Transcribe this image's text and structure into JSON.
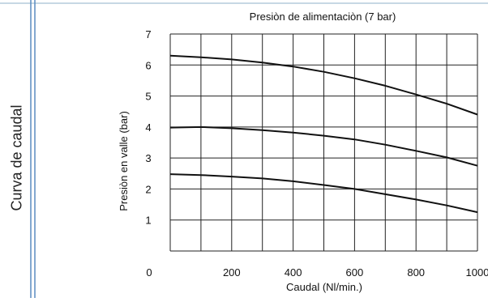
{
  "side_title": "Curva de caudal",
  "chart_data": {
    "type": "line",
    "title": "Presiòn de alimentaciòn (7 bar)",
    "xlabel": "Caudal (Nl/min.)",
    "ylabel": "Presiòn en valle (bar)",
    "xlim": [
      0,
      1000
    ],
    "ylim": [
      0,
      7
    ],
    "x_ticks": [
      0,
      200,
      400,
      600,
      800,
      1000
    ],
    "y_ticks": [
      1,
      2,
      3,
      4,
      5,
      6,
      7
    ],
    "grid": true,
    "series": [
      {
        "x": [
          0,
          100,
          200,
          300,
          400,
          500,
          600,
          700,
          800,
          900,
          1000
        ],
        "values": [
          6.3,
          6.25,
          6.18,
          6.08,
          5.95,
          5.78,
          5.57,
          5.33,
          5.05,
          4.75,
          4.4
        ]
      },
      {
        "x": [
          0,
          100,
          200,
          300,
          400,
          500,
          600,
          700,
          800,
          900,
          1000
        ],
        "values": [
          3.98,
          4.0,
          3.96,
          3.9,
          3.82,
          3.72,
          3.6,
          3.43,
          3.23,
          3.02,
          2.75
        ]
      },
      {
        "x": [
          0,
          100,
          200,
          300,
          400,
          500,
          600,
          700,
          800,
          900,
          1000
        ],
        "values": [
          2.48,
          2.45,
          2.4,
          2.34,
          2.25,
          2.13,
          2.0,
          1.83,
          1.66,
          1.47,
          1.25
        ]
      }
    ]
  }
}
